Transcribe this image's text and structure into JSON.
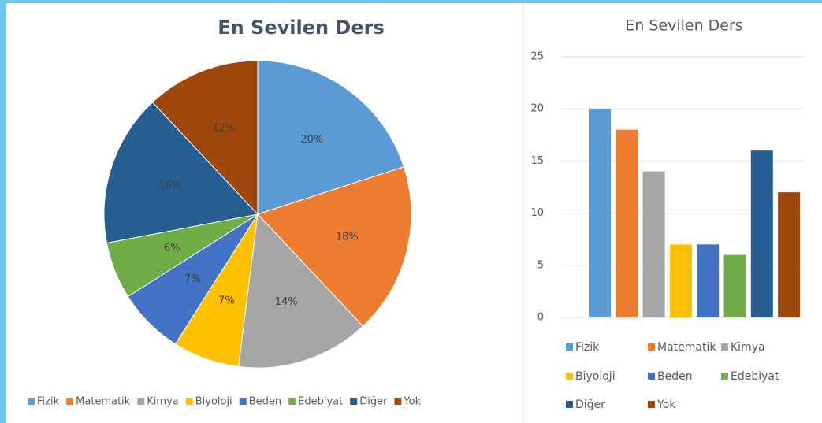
{
  "chart_data": [
    {
      "type": "pie",
      "title": "En Sevilen Ders",
      "categories": [
        "Fizik",
        "Matematik",
        "Kimya",
        "Biyoloji",
        "Beden",
        "Edebiyat",
        "Diğer",
        "Yok"
      ],
      "values": [
        20,
        18,
        14,
        7,
        7,
        6,
        16,
        12
      ],
      "value_labels": [
        "20%",
        "18%",
        "14%",
        "7%",
        "7%",
        "6%",
        "16%",
        "12%"
      ],
      "colors": [
        "#5b9bd5",
        "#ed7d31",
        "#a5a5a5",
        "#ffc000",
        "#4472c4",
        "#70ad47",
        "#255e91",
        "#9e480e"
      ],
      "legend": "bottom"
    },
    {
      "type": "bar",
      "title": "En Sevilen Ders",
      "categories": [
        "Fizik",
        "Matematik",
        "Kimya",
        "Biyoloji",
        "Beden",
        "Edebiyat",
        "Diğer",
        "Yok"
      ],
      "values": [
        20,
        18,
        14,
        7,
        7,
        6,
        16,
        12
      ],
      "colors": [
        "#5b9bd5",
        "#ed7d31",
        "#a5a5a5",
        "#ffc000",
        "#4472c4",
        "#70ad47",
        "#255e91",
        "#9e480e"
      ],
      "ylim": [
        0,
        25
      ],
      "yticks": [
        0,
        5,
        10,
        15,
        20,
        25
      ],
      "grid": true,
      "legend": "bottom"
    }
  ]
}
